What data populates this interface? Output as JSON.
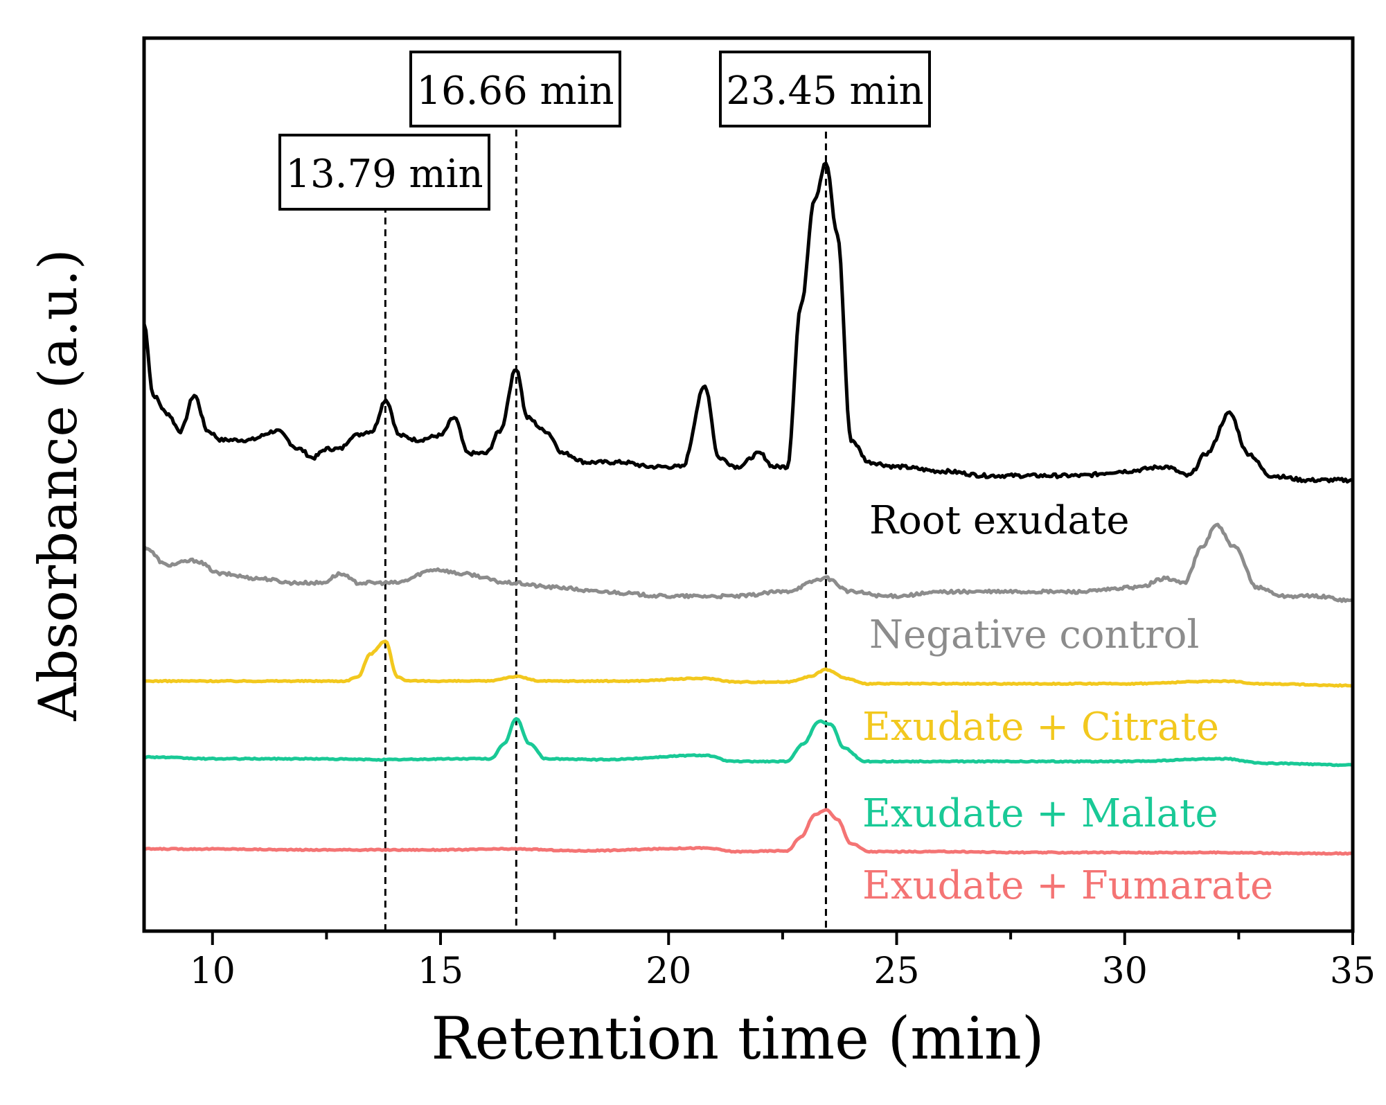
{
  "chart_data": {
    "type": "line",
    "title": "",
    "xlabel": "Retention time (min)",
    "ylabel": "Absorbance (a.u.)",
    "xlim": [
      8.5,
      35
    ],
    "ylim": [
      0,
      1
    ],
    "xticks": [
      10,
      15,
      20,
      25,
      30,
      35
    ],
    "yticks": [],
    "grid": false,
    "legend": "inline labels at right",
    "series": [
      {
        "name": "Root exudate",
        "color": "#000000",
        "baseline": 0.5,
        "points": [
          [
            8.5,
            0.68
          ],
          [
            8.7,
            0.6
          ],
          [
            9.0,
            0.58
          ],
          [
            9.3,
            0.56
          ],
          [
            9.6,
            0.6
          ],
          [
            9.9,
            0.56
          ],
          [
            10.2,
            0.55
          ],
          [
            10.8,
            0.55
          ],
          [
            11.4,
            0.56
          ],
          [
            11.9,
            0.54
          ],
          [
            12.2,
            0.53
          ],
          [
            12.5,
            0.54
          ],
          [
            12.8,
            0.54
          ],
          [
            13.1,
            0.555
          ],
          [
            13.5,
            0.56
          ],
          [
            13.8,
            0.595
          ],
          [
            14.1,
            0.555
          ],
          [
            14.5,
            0.55
          ],
          [
            15.0,
            0.555
          ],
          [
            15.3,
            0.575
          ],
          [
            15.6,
            0.535
          ],
          [
            16.0,
            0.535
          ],
          [
            16.3,
            0.56
          ],
          [
            16.66,
            0.63
          ],
          [
            16.9,
            0.575
          ],
          [
            17.3,
            0.56
          ],
          [
            17.7,
            0.535
          ],
          [
            18.2,
            0.525
          ],
          [
            19.0,
            0.525
          ],
          [
            19.6,
            0.52
          ],
          [
            20.3,
            0.52
          ],
          [
            20.8,
            0.61
          ],
          [
            21.1,
            0.53
          ],
          [
            21.5,
            0.52
          ],
          [
            22.0,
            0.535
          ],
          [
            22.3,
            0.52
          ],
          [
            22.6,
            0.52
          ],
          [
            22.9,
            0.7
          ],
          [
            23.2,
            0.82
          ],
          [
            23.45,
            0.86
          ],
          [
            23.7,
            0.78
          ],
          [
            24.0,
            0.55
          ],
          [
            24.4,
            0.525
          ],
          [
            25.0,
            0.52
          ],
          [
            26.0,
            0.515
          ],
          [
            27.0,
            0.51
          ],
          [
            28.0,
            0.51
          ],
          [
            29.0,
            0.51
          ],
          [
            30.0,
            0.515
          ],
          [
            30.9,
            0.52
          ],
          [
            31.4,
            0.51
          ],
          [
            31.8,
            0.535
          ],
          [
            32.3,
            0.58
          ],
          [
            32.7,
            0.535
          ],
          [
            33.2,
            0.51
          ],
          [
            34.0,
            0.505
          ],
          [
            35.0,
            0.505
          ]
        ]
      },
      {
        "name": "Negative control",
        "color": "#8c8c8c",
        "baseline": 0.38,
        "points": [
          [
            8.5,
            0.43
          ],
          [
            9.0,
            0.41
          ],
          [
            9.6,
            0.415
          ],
          [
            10.2,
            0.4
          ],
          [
            11.0,
            0.395
          ],
          [
            11.8,
            0.39
          ],
          [
            12.4,
            0.39
          ],
          [
            12.8,
            0.4
          ],
          [
            13.2,
            0.39
          ],
          [
            14.0,
            0.39
          ],
          [
            14.9,
            0.405
          ],
          [
            15.5,
            0.4
          ],
          [
            16.5,
            0.39
          ],
          [
            17.5,
            0.385
          ],
          [
            18.5,
            0.38
          ],
          [
            20.0,
            0.375
          ],
          [
            21.5,
            0.375
          ],
          [
            22.5,
            0.38
          ],
          [
            23.45,
            0.395
          ],
          [
            24.0,
            0.38
          ],
          [
            24.8,
            0.375
          ],
          [
            26.2,
            0.38
          ],
          [
            27.5,
            0.38
          ],
          [
            29.0,
            0.38
          ],
          [
            30.3,
            0.385
          ],
          [
            30.9,
            0.395
          ],
          [
            31.3,
            0.39
          ],
          [
            31.7,
            0.43
          ],
          [
            32.0,
            0.455
          ],
          [
            32.4,
            0.43
          ],
          [
            32.9,
            0.385
          ],
          [
            33.5,
            0.375
          ],
          [
            34.2,
            0.375
          ],
          [
            35.0,
            0.37
          ]
        ]
      },
      {
        "name": "Exudate + Citrate",
        "color": "#f2c81e",
        "baseline": 0.28,
        "points": [
          [
            8.5,
            0.28
          ],
          [
            10.0,
            0.28
          ],
          [
            12.0,
            0.28
          ],
          [
            12.9,
            0.28
          ],
          [
            13.2,
            0.285
          ],
          [
            13.45,
            0.31
          ],
          [
            13.79,
            0.325
          ],
          [
            14.05,
            0.285
          ],
          [
            14.3,
            0.28
          ],
          [
            16.0,
            0.28
          ],
          [
            16.66,
            0.285
          ],
          [
            17.2,
            0.28
          ],
          [
            19.0,
            0.28
          ],
          [
            20.8,
            0.283
          ],
          [
            21.5,
            0.279
          ],
          [
            22.6,
            0.279
          ],
          [
            23.1,
            0.285
          ],
          [
            23.45,
            0.293
          ],
          [
            23.9,
            0.283
          ],
          [
            24.3,
            0.277
          ],
          [
            26.0,
            0.277
          ],
          [
            28.0,
            0.277
          ],
          [
            30.0,
            0.277
          ],
          [
            32.2,
            0.28
          ],
          [
            33.0,
            0.277
          ],
          [
            35.0,
            0.275
          ]
        ]
      },
      {
        "name": "Exudate + Malate",
        "color": "#19c996",
        "baseline": 0.19,
        "points": [
          [
            8.5,
            0.195
          ],
          [
            10.0,
            0.193
          ],
          [
            12.0,
            0.193
          ],
          [
            13.8,
            0.192
          ],
          [
            15.5,
            0.193
          ],
          [
            16.1,
            0.193
          ],
          [
            16.4,
            0.21
          ],
          [
            16.66,
            0.238
          ],
          [
            16.95,
            0.21
          ],
          [
            17.3,
            0.193
          ],
          [
            18.5,
            0.192
          ],
          [
            20.8,
            0.197
          ],
          [
            21.4,
            0.19
          ],
          [
            22.6,
            0.19
          ],
          [
            22.95,
            0.21
          ],
          [
            23.3,
            0.235
          ],
          [
            23.55,
            0.232
          ],
          [
            23.85,
            0.205
          ],
          [
            24.3,
            0.19
          ],
          [
            26.0,
            0.19
          ],
          [
            28.0,
            0.19
          ],
          [
            30.0,
            0.19
          ],
          [
            32.2,
            0.193
          ],
          [
            33.0,
            0.188
          ],
          [
            35.0,
            0.186
          ]
        ]
      },
      {
        "name": "Exudate + Fumarate",
        "color": "#f47474",
        "baseline": 0.09,
        "points": [
          [
            8.5,
            0.092
          ],
          [
            10.0,
            0.092
          ],
          [
            12.0,
            0.091
          ],
          [
            13.8,
            0.091
          ],
          [
            15.0,
            0.091
          ],
          [
            16.6,
            0.092
          ],
          [
            18.0,
            0.09
          ],
          [
            20.8,
            0.093
          ],
          [
            21.5,
            0.089
          ],
          [
            22.6,
            0.09
          ],
          [
            22.9,
            0.105
          ],
          [
            23.2,
            0.13
          ],
          [
            23.45,
            0.136
          ],
          [
            23.7,
            0.125
          ],
          [
            24.0,
            0.098
          ],
          [
            24.4,
            0.089
          ],
          [
            26.0,
            0.089
          ],
          [
            28.0,
            0.088
          ],
          [
            30.0,
            0.088
          ],
          [
            32.0,
            0.088
          ],
          [
            34.0,
            0.087
          ],
          [
            35.0,
            0.087
          ]
        ]
      }
    ],
    "reference_lines": [
      {
        "x": 13.79,
        "label": "13.79 min"
      },
      {
        "x": 16.66,
        "label": "16.66 min"
      },
      {
        "x": 23.45,
        "label": "23.45 min"
      }
    ]
  }
}
